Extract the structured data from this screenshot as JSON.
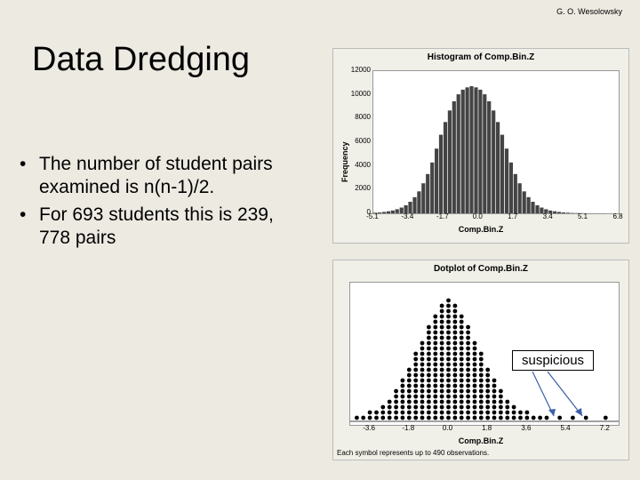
{
  "author": "G. O. Wesolowsky",
  "title": "Data Dredging",
  "bullets": [
    "The number of student pairs examined is n(n-1)/2.",
    "For 693 students this is 239, 778 pairs"
  ],
  "suspicious_label": "suspicious",
  "histogram": {
    "title": "Histogram of Comp.Bin.Z",
    "ylabel": "Frequency",
    "xlabel": "Comp.Bin.Z",
    "xticks": [
      "-5.1",
      "-3.4",
      "-1.7",
      "0.0",
      "1.7",
      "3.4",
      "5.1",
      "6.8"
    ],
    "yticks": [
      "0",
      "2000",
      "4000",
      "6000",
      "8000",
      "10000",
      "12000"
    ],
    "ymax": 12000,
    "bar_color": "#444",
    "plot_bg": "#ffffff",
    "chart_bg": "#f0f0e8",
    "bars": [
      50,
      80,
      120,
      180,
      250,
      350,
      500,
      700,
      1000,
      1400,
      1900,
      2600,
      3400,
      4400,
      5600,
      6800,
      7900,
      8900,
      9700,
      10300,
      10700,
      10900,
      11000,
      10900,
      10700,
      10300,
      9700,
      8900,
      7900,
      6800,
      5600,
      4400,
      3400,
      2600,
      1900,
      1400,
      1000,
      700,
      500,
      350,
      250,
      180,
      120,
      80,
      50,
      30,
      20,
      15,
      10,
      8,
      6,
      5,
      4,
      3,
      2,
      2
    ]
  },
  "dotplot": {
    "title": "Dotplot of Comp.Bin.Z",
    "xlabel": "Comp.Bin.Z",
    "footnote": "Each symbol represents up to 490 observations.",
    "xticks": [
      "-3.6",
      "-1.8",
      "0.0",
      "1.8",
      "3.6",
      "5.4",
      "7.2"
    ],
    "xmin": -4.5,
    "xmax": 7.8,
    "dot_color": "#000",
    "plot_bg": "#ffffff",
    "chart_bg": "#f0f0e8",
    "columns": [
      {
        "x": -4.2,
        "n": 1
      },
      {
        "x": -3.9,
        "n": 1
      },
      {
        "x": -3.6,
        "n": 2
      },
      {
        "x": -3.3,
        "n": 2
      },
      {
        "x": -3.0,
        "n": 3
      },
      {
        "x": -2.7,
        "n": 4
      },
      {
        "x": -2.4,
        "n": 6
      },
      {
        "x": -2.1,
        "n": 8
      },
      {
        "x": -1.8,
        "n": 10
      },
      {
        "x": -1.5,
        "n": 13
      },
      {
        "x": -1.2,
        "n": 15
      },
      {
        "x": -0.9,
        "n": 18
      },
      {
        "x": -0.6,
        "n": 20
      },
      {
        "x": -0.3,
        "n": 22
      },
      {
        "x": 0.0,
        "n": 23
      },
      {
        "x": 0.3,
        "n": 22
      },
      {
        "x": 0.6,
        "n": 20
      },
      {
        "x": 0.9,
        "n": 18
      },
      {
        "x": 1.2,
        "n": 15
      },
      {
        "x": 1.5,
        "n": 13
      },
      {
        "x": 1.8,
        "n": 10
      },
      {
        "x": 2.1,
        "n": 8
      },
      {
        "x": 2.4,
        "n": 6
      },
      {
        "x": 2.7,
        "n": 4
      },
      {
        "x": 3.0,
        "n": 3
      },
      {
        "x": 3.3,
        "n": 2
      },
      {
        "x": 3.6,
        "n": 2
      },
      {
        "x": 3.9,
        "n": 1
      },
      {
        "x": 4.2,
        "n": 1
      },
      {
        "x": 4.5,
        "n": 1
      },
      {
        "x": 5.1,
        "n": 1
      },
      {
        "x": 5.7,
        "n": 1
      },
      {
        "x": 6.3,
        "n": 1
      },
      {
        "x": 7.2,
        "n": 1
      }
    ]
  }
}
